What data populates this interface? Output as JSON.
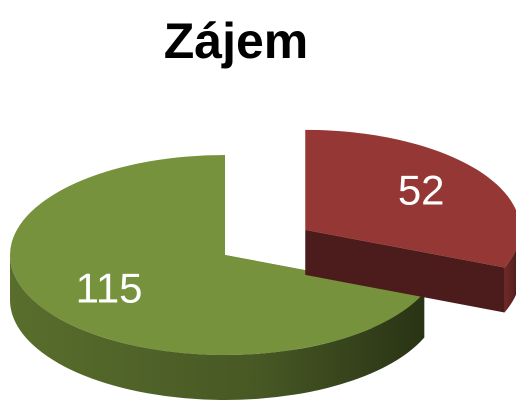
{
  "chart_data": {
    "type": "pie",
    "title": "Zájem",
    "categories": [
      null,
      null
    ],
    "values": [
      52,
      115
    ],
    "colors": [
      "#953735",
      "#76923c"
    ]
  }
}
